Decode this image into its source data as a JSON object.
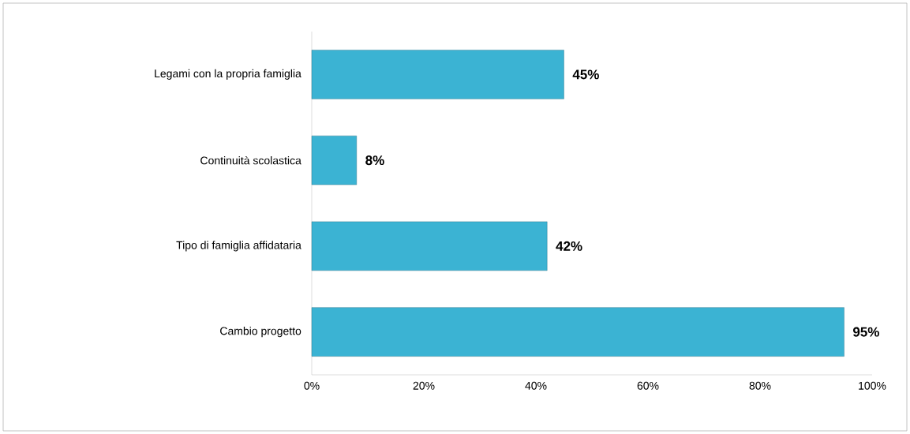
{
  "chart_data": {
    "type": "bar",
    "orientation": "horizontal",
    "categories": [
      "Legami con la propria famiglia",
      "Continuità scolastica",
      "Tipo di famiglia affidataria",
      "Cambio progetto"
    ],
    "values": [
      45,
      8,
      42,
      95
    ],
    "value_labels": [
      "45%",
      "8%",
      "42%",
      "95%"
    ],
    "color": "#3bb3d3",
    "xlim": [
      0,
      100
    ],
    "xticks": [
      {
        "value": 0,
        "label": "0%"
      },
      {
        "value": 20,
        "label": "20%"
      },
      {
        "value": 40,
        "label": "40%"
      },
      {
        "value": 60,
        "label": "60%"
      },
      {
        "value": 80,
        "label": "80%"
      },
      {
        "value": 100,
        "label": "100%"
      }
    ],
    "grid": false
  }
}
